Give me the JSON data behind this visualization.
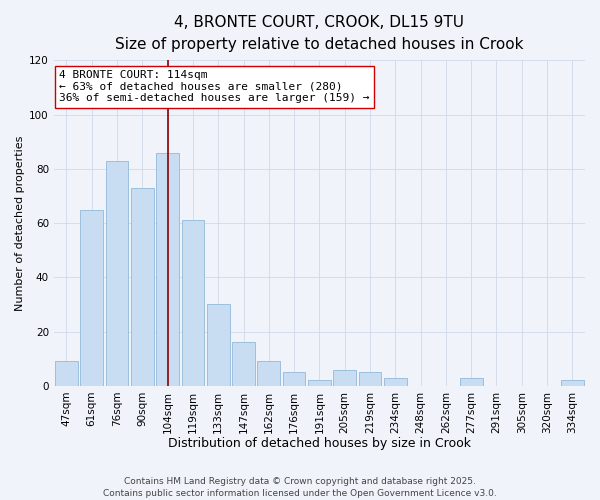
{
  "title": "4, BRONTE COURT, CROOK, DL15 9TU",
  "subtitle": "Size of property relative to detached houses in Crook",
  "xlabel": "Distribution of detached houses by size in Crook",
  "ylabel": "Number of detached properties",
  "categories": [
    "47sqm",
    "61sqm",
    "76sqm",
    "90sqm",
    "104sqm",
    "119sqm",
    "133sqm",
    "147sqm",
    "162sqm",
    "176sqm",
    "191sqm",
    "205sqm",
    "219sqm",
    "234sqm",
    "248sqm",
    "262sqm",
    "277sqm",
    "291sqm",
    "305sqm",
    "320sqm",
    "334sqm"
  ],
  "values": [
    9,
    65,
    83,
    73,
    86,
    61,
    30,
    16,
    9,
    5,
    2,
    6,
    5,
    3,
    0,
    0,
    3,
    0,
    0,
    0,
    2
  ],
  "bar_color": "#c9ddf2",
  "bar_edge_color": "#9bbfde",
  "vline_bar_index": 4,
  "vline_color": "#8b0000",
  "annotation_line1": "4 BRONTE COURT: 114sqm",
  "annotation_line2": "← 63% of detached houses are smaller (280)",
  "annotation_line3": "36% of semi-detached houses are larger (159) →",
  "ylim": [
    0,
    120
  ],
  "yticks": [
    0,
    20,
    40,
    60,
    80,
    100,
    120
  ],
  "grid_color": "#d0d8e8",
  "background_color": "#f0f4fa",
  "footer_line1": "Contains HM Land Registry data © Crown copyright and database right 2025.",
  "footer_line2": "Contains public sector information licensed under the Open Government Licence v3.0.",
  "title_fontsize": 11,
  "subtitle_fontsize": 9.5,
  "xlabel_fontsize": 9,
  "ylabel_fontsize": 8,
  "tick_fontsize": 7.5,
  "annotation_fontsize": 8,
  "footer_fontsize": 6.5
}
